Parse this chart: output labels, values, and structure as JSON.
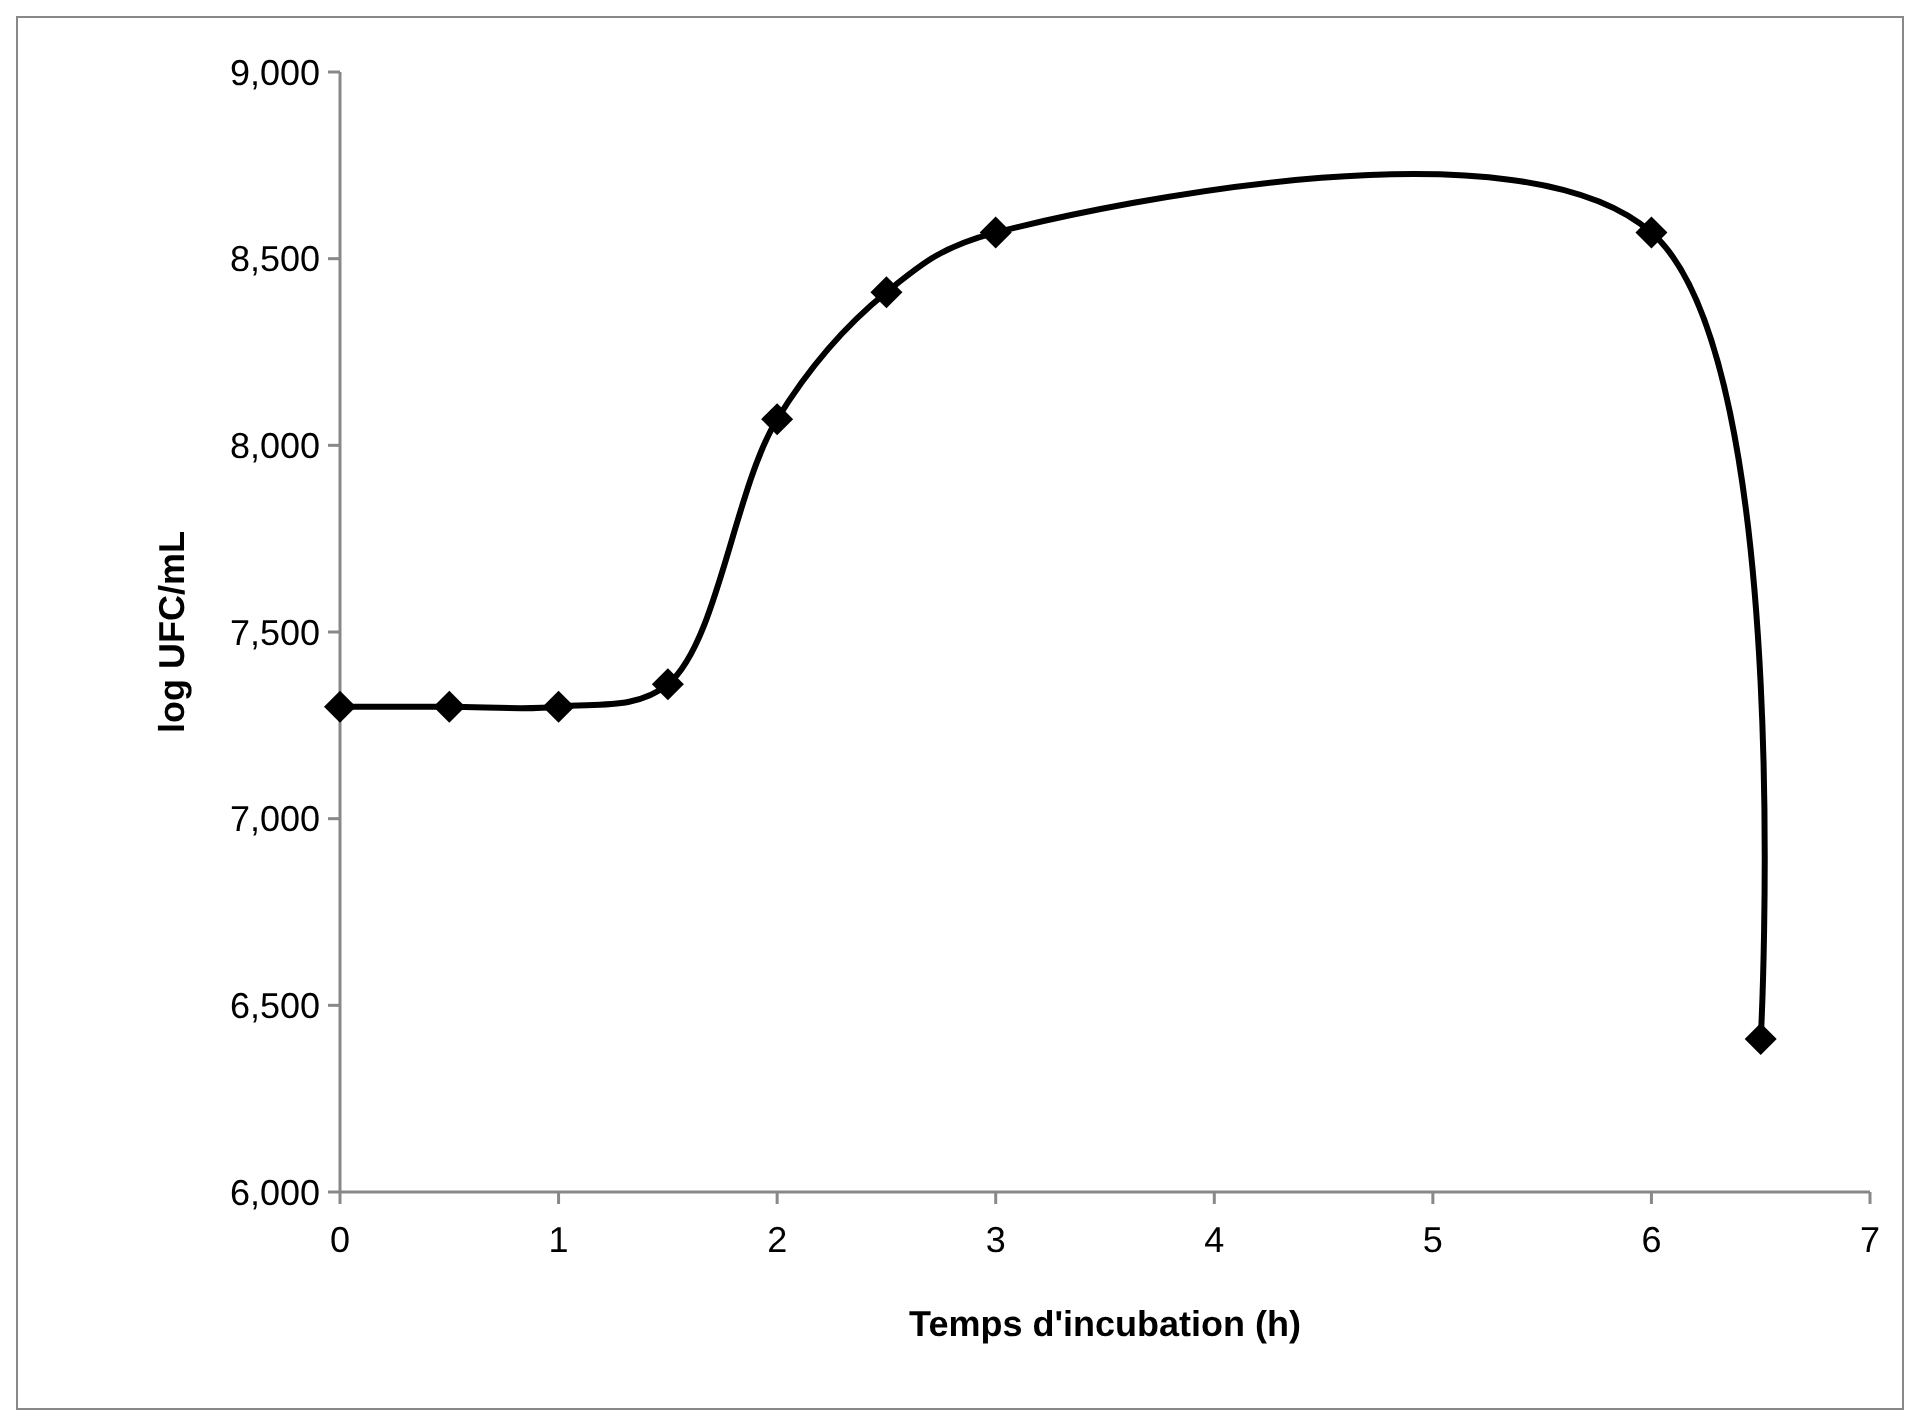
{
  "chart_data": {
    "type": "line",
    "xlabel": "Temps d'incubation (h)",
    "ylabel": "log UFC/mL",
    "x": [
      0,
      0.5,
      1,
      1.5,
      2,
      2.5,
      3,
      6,
      6.5
    ],
    "series": [
      {
        "color": "#000000",
        "values": [
          7300,
          7300,
          7300,
          7360,
          8070,
          8410,
          8570,
          8570,
          6410
        ]
      }
    ],
    "xlim": [
      0,
      7
    ],
    "xticks": [
      0,
      1,
      2,
      3,
      4,
      5,
      6,
      7
    ],
    "ylim": [
      6000,
      9000
    ],
    "yticks": [
      {
        "value": 6000,
        "label": "6,000"
      },
      {
        "value": 6500,
        "label": "6,500"
      },
      {
        "value": 7000,
        "label": "7,000"
      },
      {
        "value": 7500,
        "label": "7,500"
      },
      {
        "value": 8000,
        "label": "8,000"
      },
      {
        "value": 8500,
        "label": "8,500"
      },
      {
        "value": 9000,
        "label": "9,000"
      }
    ],
    "grid": false,
    "marker": "diamond",
    "line_style": "solid"
  }
}
